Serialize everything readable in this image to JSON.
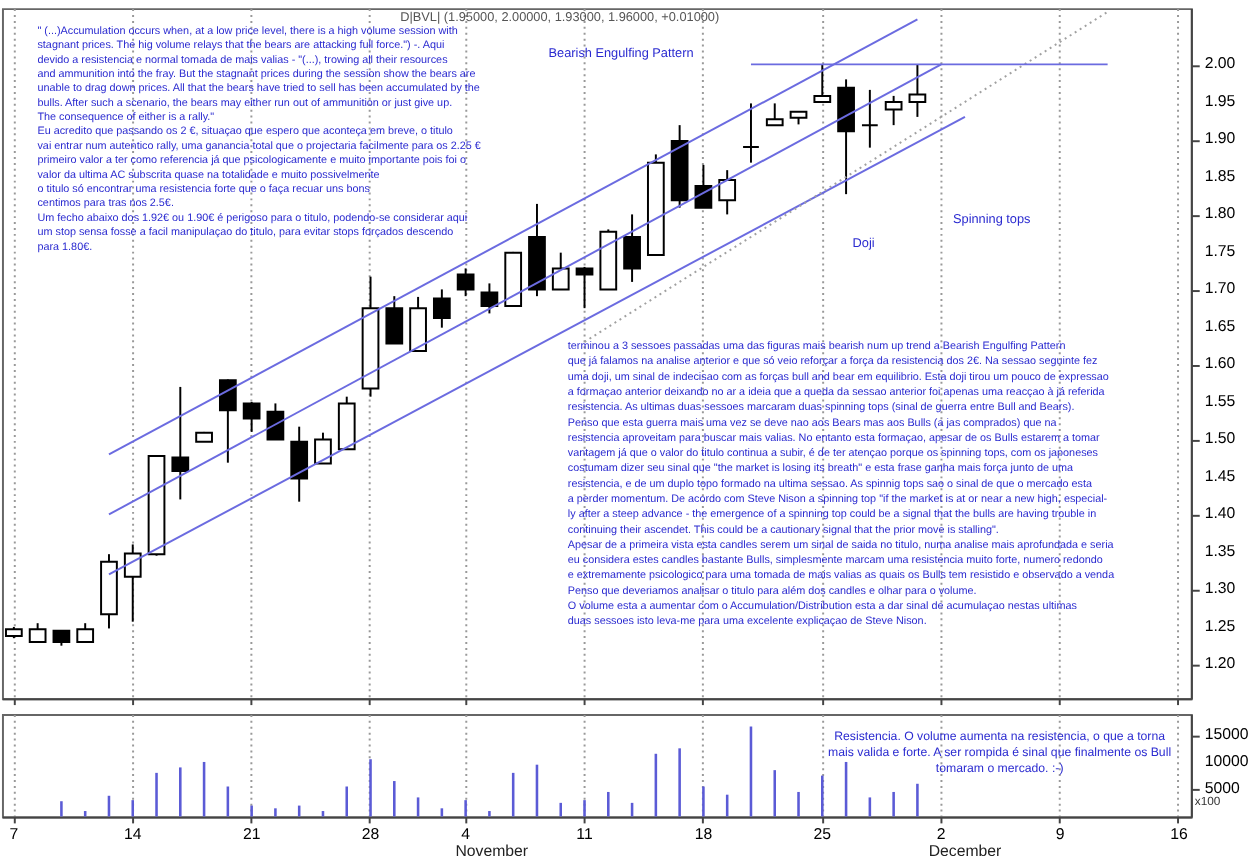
{
  "chart_data": [
    {
      "type": "candlestick",
      "title": "D|BVL| (1.95000, 2.00000, 1.93000, 1.96000, +0.01000)",
      "categories": [
        "7",
        null,
        null,
        null,
        null,
        "14",
        null,
        null,
        null,
        null,
        "21",
        null,
        null,
        null,
        null,
        "28",
        null,
        null,
        null,
        "4",
        null,
        null,
        null,
        null,
        "11",
        null,
        null,
        null,
        null,
        "18",
        null,
        null,
        null,
        null,
        "25",
        null,
        null,
        null,
        null,
        "2",
        null,
        null,
        null,
        null,
        "9",
        null,
        null,
        null,
        null,
        "16"
      ],
      "ohlc": [
        [
          1.238,
          1.25,
          1.235,
          1.247
        ],
        [
          1.23,
          1.255,
          1.23,
          1.247
        ],
        [
          1.245,
          1.245,
          1.225,
          1.23
        ],
        [
          1.23,
          1.255,
          1.23,
          1.247
        ],
        [
          1.267,
          1.347,
          1.248,
          1.337
        ],
        [
          1.317,
          1.36,
          1.257,
          1.348
        ],
        [
          1.347,
          1.478,
          1.345,
          1.478
        ],
        [
          1.476,
          1.57,
          1.42,
          1.458
        ],
        [
          1.497,
          1.51,
          1.497,
          1.509
        ],
        [
          1.579,
          1.58,
          1.469,
          1.539
        ],
        [
          1.548,
          1.55,
          1.51,
          1.528
        ],
        [
          1.537,
          1.548,
          1.5,
          1.5
        ],
        [
          1.497,
          1.517,
          1.417,
          1.448
        ],
        [
          1.468,
          1.509,
          1.468,
          1.5
        ],
        [
          1.487,
          1.557,
          1.487,
          1.548
        ],
        [
          1.568,
          1.717,
          1.557,
          1.675
        ],
        [
          1.675,
          1.691,
          1.628,
          1.628
        ],
        [
          1.618,
          1.69,
          1.618,
          1.675
        ],
        [
          1.688,
          1.7,
          1.649,
          1.662
        ],
        [
          1.72,
          1.728,
          1.691,
          1.7
        ],
        [
          1.696,
          1.708,
          1.668,
          1.678
        ],
        [
          1.678,
          1.75,
          1.678,
          1.749
        ],
        [
          1.77,
          1.814,
          1.691,
          1.7
        ],
        [
          1.7,
          1.749,
          1.7,
          1.728
        ],
        [
          1.728,
          1.73,
          1.675,
          1.72
        ],
        [
          1.7,
          1.78,
          1.7,
          1.777
        ],
        [
          1.77,
          1.8,
          1.71,
          1.728
        ],
        [
          1.746,
          1.88,
          1.746,
          1.869
        ],
        [
          1.898,
          1.919,
          1.809,
          1.819
        ],
        [
          1.838,
          1.866,
          1.809,
          1.809
        ],
        [
          1.819,
          1.859,
          1.8,
          1.846
        ],
        [
          1.89,
          1.948,
          1.869,
          1.89
        ],
        [
          1.919,
          1.948,
          1.919,
          1.927
        ],
        [
          1.929,
          1.937,
          1.92,
          1.937
        ],
        [
          1.95,
          2.0,
          1.95,
          1.958
        ],
        [
          1.969,
          1.98,
          1.827,
          1.911
        ],
        [
          1.919,
          1.966,
          1.889,
          1.919
        ],
        [
          1.94,
          1.958,
          1.919,
          1.95
        ],
        [
          1.95,
          2.0,
          1.93,
          1.96
        ],
        null,
        null,
        null,
        null,
        null,
        null,
        null,
        null,
        null,
        null,
        null
      ],
      "series": [
        {
          "type": "line",
          "color": "#6b6be0",
          "line_style": "solid",
          "values": [
            null,
            null,
            null,
            null,
            1.48,
            null,
            null,
            null,
            null,
            null,
            null,
            null,
            null,
            null,
            null,
            null,
            null,
            null,
            null,
            null,
            null,
            null,
            null,
            null,
            null,
            null,
            null,
            null,
            null,
            null,
            null,
            null,
            null,
            null,
            null,
            null,
            null,
            null,
            2.06,
            null,
            null,
            null,
            null,
            null,
            null,
            null,
            null,
            null,
            null,
            null
          ]
        },
        {
          "type": "line",
          "color": "#6b6be0",
          "line_style": "solid",
          "values": [
            null,
            null,
            null,
            null,
            1.4,
            null,
            null,
            null,
            null,
            null,
            null,
            null,
            null,
            null,
            null,
            null,
            null,
            null,
            null,
            null,
            null,
            null,
            null,
            null,
            null,
            null,
            null,
            null,
            null,
            null,
            null,
            null,
            null,
            null,
            null,
            null,
            null,
            null,
            null,
            2.0,
            null,
            null,
            null,
            null,
            null,
            null,
            null,
            null,
            null,
            null
          ]
        },
        {
          "type": "line",
          "color": "#6b6be0",
          "line_style": "solid",
          "values": [
            null,
            null,
            null,
            null,
            1.32,
            null,
            null,
            null,
            null,
            null,
            null,
            null,
            null,
            null,
            null,
            null,
            null,
            null,
            null,
            null,
            null,
            null,
            null,
            null,
            null,
            null,
            null,
            null,
            null,
            null,
            null,
            null,
            null,
            null,
            null,
            null,
            null,
            null,
            null,
            null,
            1.93,
            null,
            null,
            null,
            null,
            null,
            null,
            null,
            null,
            null
          ]
        },
        {
          "type": "line",
          "color": "#a0a0a0",
          "line_style": "dotted",
          "values": [
            null,
            null,
            null,
            null,
            null,
            null,
            null,
            null,
            null,
            null,
            null,
            null,
            null,
            null,
            null,
            null,
            null,
            null,
            null,
            null,
            null,
            null,
            null,
            null,
            1.63,
            null,
            null,
            null,
            null,
            null,
            null,
            null,
            null,
            null,
            null,
            null,
            null,
            null,
            null,
            null,
            null,
            null,
            null,
            null,
            null,
            null,
            2.07,
            null,
            null,
            null
          ]
        },
        {
          "type": "line",
          "color": "#6b6be0",
          "line_style": "solid",
          "values": [
            null,
            null,
            null,
            null,
            null,
            null,
            null,
            null,
            null,
            null,
            null,
            null,
            null,
            null,
            null,
            null,
            null,
            null,
            null,
            null,
            null,
            null,
            null,
            null,
            null,
            null,
            null,
            null,
            null,
            null,
            null,
            2.0,
            null,
            null,
            null,
            null,
            null,
            null,
            null,
            null,
            null,
            null,
            null,
            null,
            null,
            null,
            2.0,
            null,
            null,
            null
          ]
        }
      ],
      "ylim": [
        1.155,
        2.075
      ],
      "yticks": [
        {
          "value": 1.2,
          "label": "1.20"
        },
        {
          "value": 1.25,
          "label": "1.25"
        },
        {
          "value": 1.3,
          "label": "1.30"
        },
        {
          "value": 1.35,
          "label": "1.35"
        },
        {
          "value": 1.4,
          "label": "1.40"
        },
        {
          "value": 1.45,
          "label": "1.45"
        },
        {
          "value": 1.5,
          "label": "1.50"
        },
        {
          "value": 1.55,
          "label": "1.55"
        },
        {
          "value": 1.6,
          "label": "1.60"
        },
        {
          "value": 1.65,
          "label": "1.65"
        },
        {
          "value": 1.7,
          "label": "1.70"
        },
        {
          "value": 1.75,
          "label": "1.75"
        },
        {
          "value": 1.8,
          "label": "1.80"
        },
        {
          "value": 1.85,
          "label": "1.85"
        },
        {
          "value": 1.9,
          "label": "1.90"
        },
        {
          "value": 1.95,
          "label": "1.95"
        },
        {
          "value": 2.0,
          "label": "2.00"
        }
      ],
      "grid": "x",
      "tick_labels": "y",
      "annotations": [
        "\" (...)Accumulation occurs when, at a low price level, there is a high volume session with\nstagnant prices. The hig volume relays that the bears are attacking full force.\") -. Aqui\ndevido a resistencia e normal tomada de mais valias - \"(...), trowing all their resources\nand ammunition into the fray. But the stagnant prices during the session show the bears are\nunable to drag down prices. All that the bears have tried to sell has been accumulated by the\nbulls. After such a scenario, the bears may either run out of ammunition or just give up.\nThe consequence of either is a rally.\"\n\nEu acredito que passando os 2 €, situaçao que espero que aconteça em breve, o titulo\nvai entrar num autentico rally, uma ganancia total que o projectaria facilmente para os 2.25 €\nprimeiro valor a ter como referencia já que psicologicamente e muito importante pois foi o\nvalor da ultima AC subscrita quase na totalidade e muito possivelmente\no titulo só encontrar uma resistencia forte que o faça recuar uns bons\ncentimos para tras nos 2.5€.\n\nUm fecho abaixo dos 1.92€ ou 1.90€ é perigoso para o titulo, podendo-se considerar aqui\num stop sensa fosse a facil manipulaçao do titulo, para evitar stops forçados descendo\npara 1.80€.",
        "terminou a 3 sessoes passadas uma das figuras mais bearish num up trend a Bearish Engulfing Pattern\nque já falamos na analise anterior e que só veio reforçar a força da resistencia dos 2€. Na sessao seguinte fez\numa doji, um sinal de indecisao com as forças bull and bear em equilibrio. Esta doji tirou um pouco de expressao\na formaçao anterior deixando no ar a ideia que a queda da sessao anterior foi apenas uma reacçao à já referida\nresistencia. As ultimas duas sessoes marcaram duas spinning tops (sinal de guerra entre Bull and Bears).\nPenso que esta guerra mais uma vez se deve nao aos Bears mas aos Bulls (a jas comprados) que na\n resistencia aproveitam para buscar mais valias. No entanto esta formaçao, apesar de os Bulls estarem a tomar\nvantagem já que o valor do titulo continua a subir, é de ter atençao porque os spinning tops, com os japoneses\ncostumam dizer seu sinal que \"the market is losing its breath\" e esta frase ganha mais força junto de uma\nresistencia, e de um duplo topo formado na ultima sessao. As spinnig tops sao o sinal de que o mercado esta\na perder momentum. De acordo com Steve Nison a spinning top \"if the market is at or near a new high, especial-\nly after a steep advance - the emergence of a spinning top could be a signal that the bulls are having trouble in\ncontinuing their ascendet. This could be a cautionary signal that the prior move is stalling\".\nApesar de a primeira vista esta candles serem um sinal de saida no titulo, numa analise mais aprofundada e seria\neu considera estes candles bastante Bulls, simplesmente marcam uma resistencia muito forte, numero redondo\ne extremamente psicologico para uma tomada de mais valias as quais os Bulls tem resistido e observado a venda\nPenso que deveriamos analisar o titulo para além dos candles e olhar para o volume.\nO volume esta a aumentar com o Accumulation/Distribution esta a dar sinal de acumulaçao nestas ultimas\nduas sessoes isto leva-me para uma excelente explicaçao de Steve Nison.",
        "Bearish Engulfing Pattern",
        "Doji",
        "Spinning tops"
      ]
    },
    {
      "type": "bar",
      "ylabel": "x100",
      "categories": [
        "7",
        null,
        null,
        null,
        null,
        "14",
        null,
        null,
        null,
        null,
        "21",
        null,
        null,
        null,
        null,
        "28",
        null,
        null,
        null,
        "4",
        null,
        null,
        null,
        null,
        "11",
        null,
        null,
        null,
        null,
        "18",
        null,
        null,
        null,
        null,
        "25",
        null,
        null,
        null,
        null,
        "2",
        null,
        null,
        null,
        null,
        "9",
        null,
        null,
        null,
        null,
        "16"
      ],
      "color": "#5b5bd6",
      "values": [
        null,
        null,
        2800,
        1000,
        3800,
        3000,
        8000,
        9000,
        10000,
        5500,
        2000,
        1500,
        2000,
        1000,
        5500,
        10500,
        6500,
        3500,
        1500,
        3000,
        1000,
        8000,
        9500,
        2500,
        3000,
        4500,
        2500,
        11500,
        12500,
        5500,
        4000,
        16500,
        8500,
        4500,
        7500,
        10000,
        3500,
        4500,
        6000,
        null,
        null,
        null,
        null,
        null,
        null,
        null,
        null,
        null,
        null,
        null
      ],
      "ylim": [
        0,
        18800
      ],
      "yticks": [
        5000,
        10000,
        15000
      ],
      "grid": "x",
      "annotations": [
        "Resistencia. O volume aumenta na resistencia, o que a torna\nmais valida e forte. A ser rompida é sinal que finalmente os Bull\ntomaram o mercado. :-)",
        "November",
        "December"
      ]
    }
  ]
}
